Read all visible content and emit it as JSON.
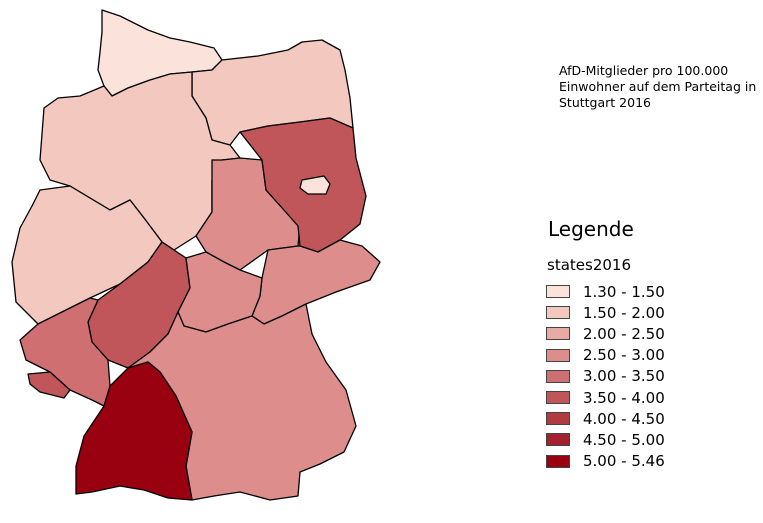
{
  "note": "AfD-Mitglieder pro 100.000\nEinwohner auf dem Parteitag in\nStuttgart 2016",
  "legend": {
    "title": "Legende",
    "layer": "states2016",
    "classes": [
      {
        "label": "1.30 - 1.50",
        "color": "#fbe3dc"
      },
      {
        "label": "1.50 - 2.00",
        "color": "#f2c8bf"
      },
      {
        "label": "2.00 - 2.50",
        "color": "#e8aaa5"
      },
      {
        "label": "2.50 - 3.00",
        "color": "#dd8d8b"
      },
      {
        "label": "3.00 - 3.50",
        "color": "#cf6f71"
      },
      {
        "label": "3.50 - 4.00",
        "color": "#c05659"
      },
      {
        "label": "4.00 - 4.50",
        "color": "#b23b42"
      },
      {
        "label": "4.50 - 5.00",
        "color": "#a5202d"
      },
      {
        "label": "5.00 - 5.46",
        "color": "#990010"
      }
    ]
  },
  "regions": [
    {
      "id": "schleswig-holstein",
      "color": "#fbe3dc"
    },
    {
      "id": "mecklenburg-vorpommern",
      "color": "#f2c8bf"
    },
    {
      "id": "niedersachsen",
      "color": "#f2c8bf"
    },
    {
      "id": "nordrhein-westfalen",
      "color": "#f2c8bf"
    },
    {
      "id": "brandenburg",
      "color": "#c05659"
    },
    {
      "id": "berlin",
      "color": "#fbe3dc"
    },
    {
      "id": "sachsen-anhalt",
      "color": "#dd8d8b"
    },
    {
      "id": "thueringen",
      "color": "#dd8d8b"
    },
    {
      "id": "sachsen",
      "color": "#dd8d8b"
    },
    {
      "id": "hessen",
      "color": "#c05659"
    },
    {
      "id": "rheinland-pfalz",
      "color": "#cf6f71"
    },
    {
      "id": "saarland",
      "color": "#c05659"
    },
    {
      "id": "bayern",
      "color": "#dd8d8b"
    },
    {
      "id": "baden-wuerttemberg",
      "color": "#990010"
    }
  ]
}
